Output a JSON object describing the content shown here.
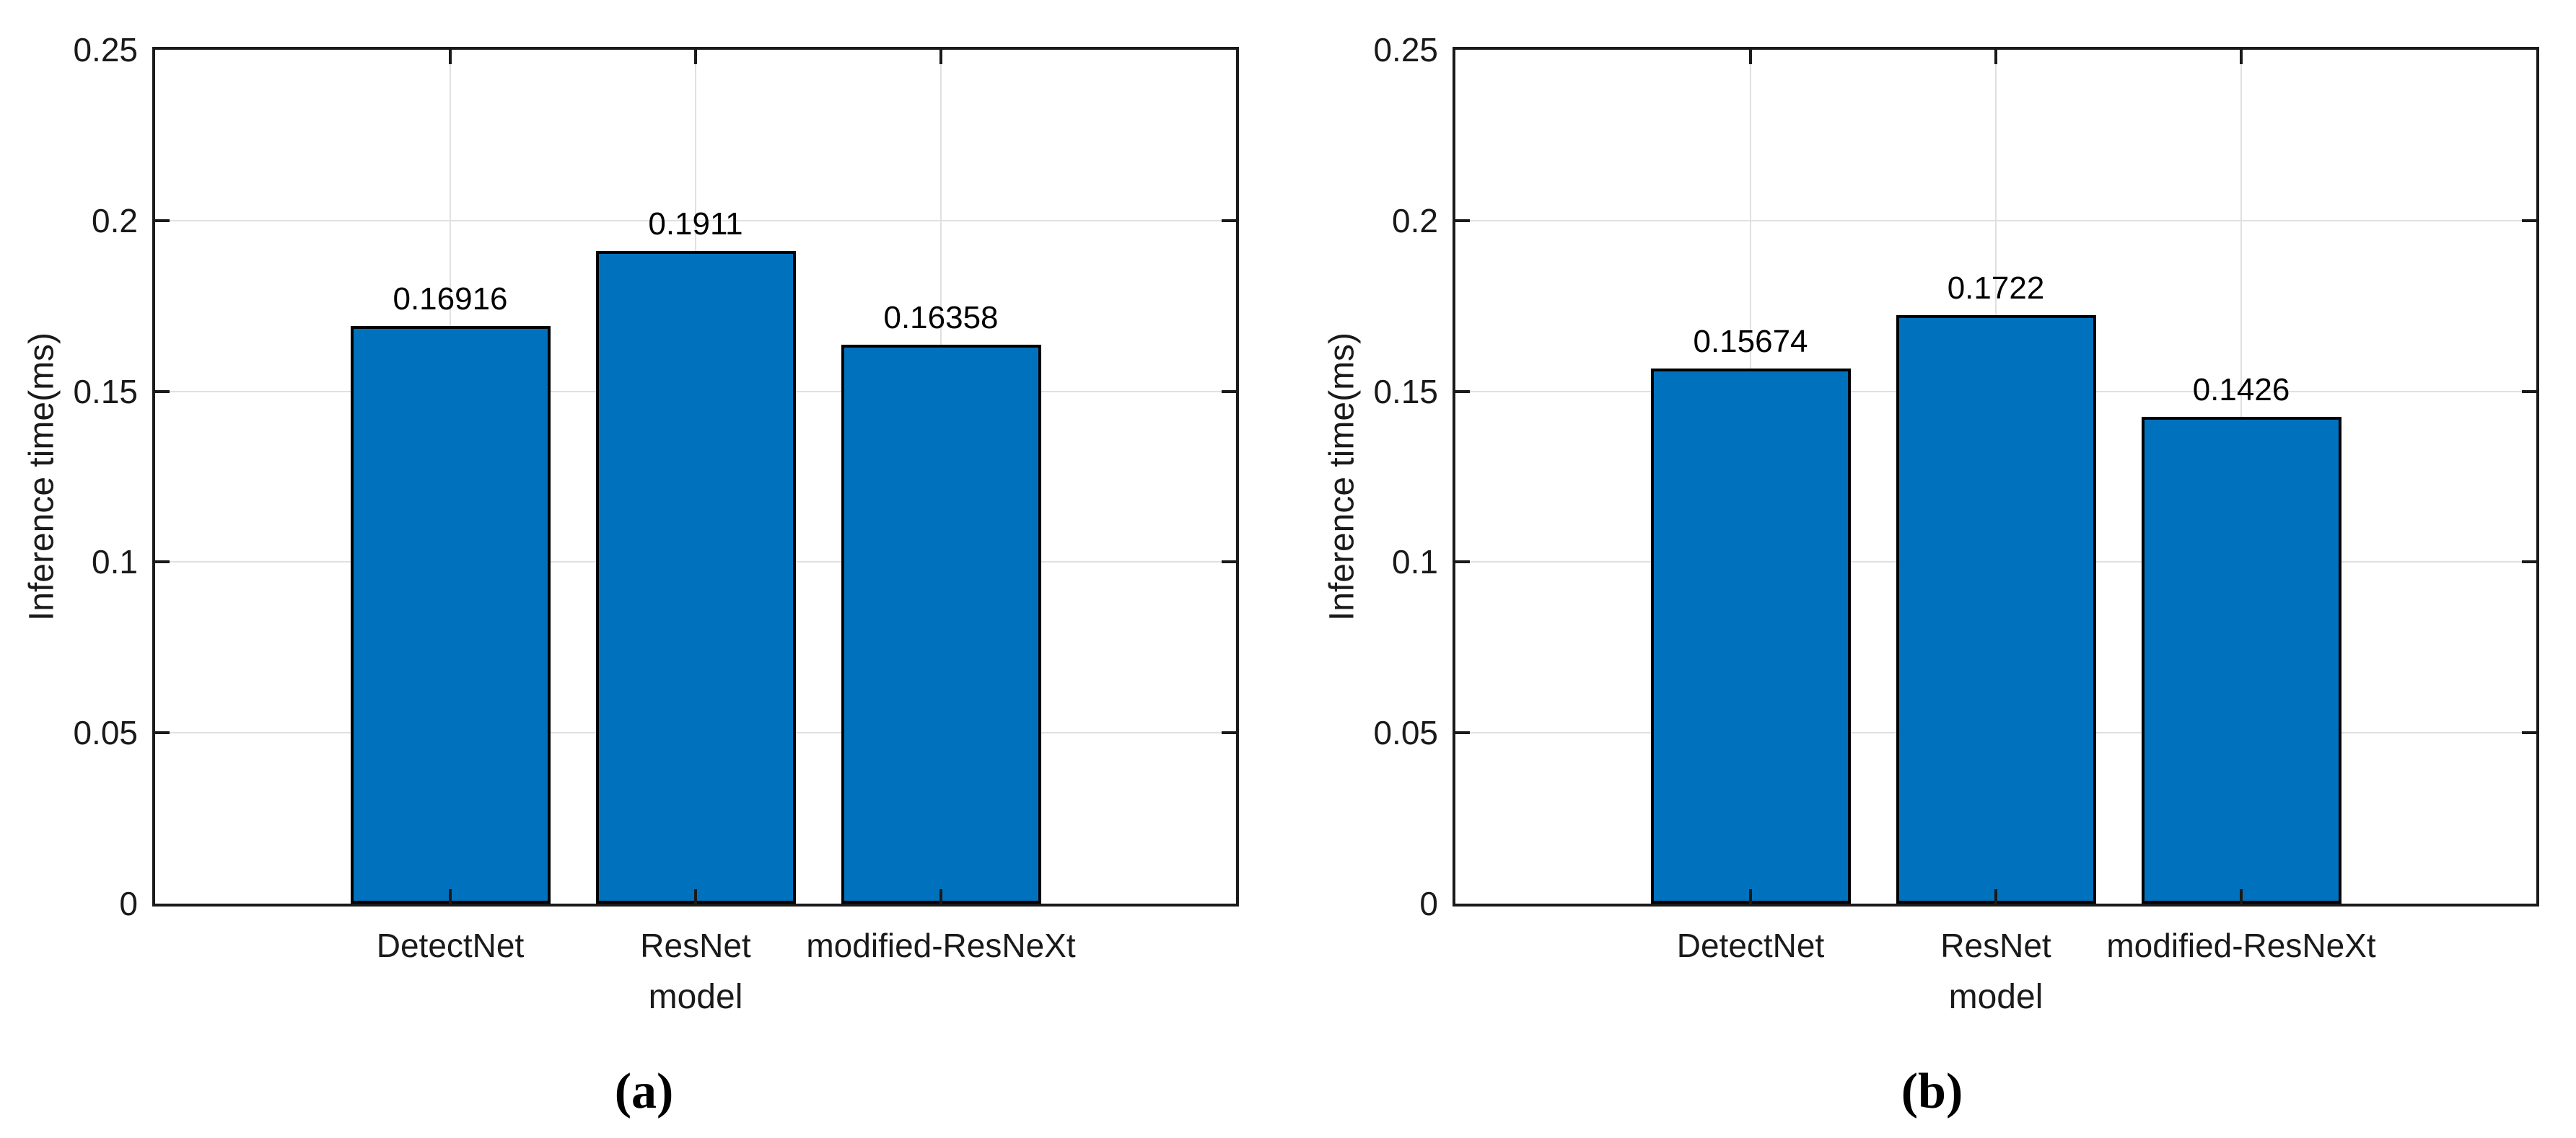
{
  "figure": {
    "bar_fill_color": "#0072BD",
    "bar_edge_color": "#000000",
    "grid_color": "#e0e0e0",
    "axis_color": "#1a1a1a",
    "text_color": "#1a1a1a"
  },
  "chart_data": [
    {
      "type": "bar",
      "panel": "a",
      "caption": "(a)",
      "xlabel": "model",
      "ylabel": "Inference time(ms)",
      "categories": [
        "DetectNet",
        "ResNet",
        "modified-ResNeXt"
      ],
      "values": [
        0.16916,
        0.1911,
        0.16358
      ],
      "value_labels": [
        "0.16916",
        "0.1911",
        "0.16358"
      ],
      "ylim": [
        0,
        0.25
      ],
      "yticks": [
        0,
        0.05,
        0.1,
        0.15,
        0.2,
        0.25
      ],
      "ytick_labels": [
        "0",
        "0.05",
        "0.1",
        "0.15",
        "0.2",
        "0.25"
      ],
      "grid": "both",
      "legend_position": "none"
    },
    {
      "type": "bar",
      "panel": "b",
      "caption": "(b)",
      "xlabel": "model",
      "ylabel": "Inference time(ms)",
      "categories": [
        "DetectNet",
        "ResNet",
        "modified-ResNeXt"
      ],
      "values": [
        0.15674,
        0.1722,
        0.1426
      ],
      "value_labels": [
        "0.15674",
        "0.1722",
        "0.1426"
      ],
      "ylim": [
        0,
        0.25
      ],
      "yticks": [
        0,
        0.05,
        0.1,
        0.15,
        0.2,
        0.25
      ],
      "ytick_labels": [
        "0",
        "0.05",
        "0.1",
        "0.15",
        "0.2",
        "0.25"
      ],
      "grid": "both",
      "legend_position": "none"
    }
  ]
}
